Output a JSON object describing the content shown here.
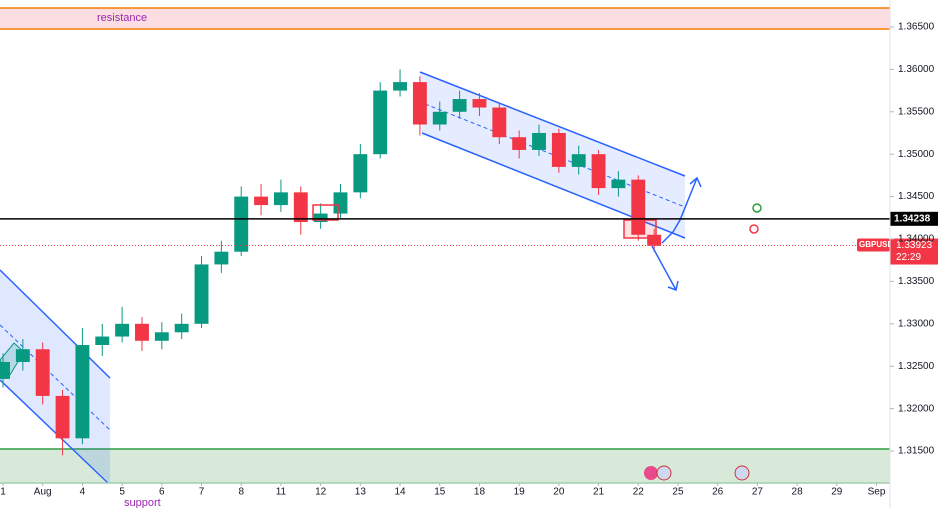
{
  "chart_data": {
    "type": "candlestick",
    "up_color": "#089981",
    "down_color": "#f23645",
    "x": [
      0,
      0.5,
      1,
      1.5,
      2,
      2.5,
      3,
      3.5,
      4,
      4.5,
      5,
      5.5,
      6,
      6.5,
      7,
      7.5,
      8,
      8.5,
      9,
      9.5,
      10,
      10.5,
      11,
      11.5,
      12,
      12.5,
      13,
      13.5,
      14,
      14.5,
      15,
      15.5,
      16,
      16.4
    ],
    "open": [
      1.3235,
      1.3255,
      1.327,
      1.3215,
      1.3165,
      1.3275,
      1.3285,
      1.33,
      1.328,
      1.329,
      1.33,
      1.337,
      1.3385,
      1.345,
      1.344,
      1.3455,
      1.342,
      1.343,
      1.3455,
      1.35,
      1.3575,
      1.3585,
      1.3535,
      1.355,
      1.3565,
      1.3555,
      1.352,
      1.3505,
      1.3525,
      1.3485,
      1.35,
      1.346,
      1.347,
      1.3405
    ],
    "high": [
      1.3265,
      1.3282,
      1.3278,
      1.3222,
      1.3295,
      1.33,
      1.332,
      1.3308,
      1.3302,
      1.3312,
      1.338,
      1.3398,
      1.3462,
      1.3465,
      1.347,
      1.3462,
      1.3442,
      1.3465,
      1.3512,
      1.3585,
      1.36,
      1.3592,
      1.3562,
      1.3575,
      1.3572,
      1.356,
      1.3528,
      1.3535,
      1.353,
      1.351,
      1.3505,
      1.348,
      1.3475,
      1.3412
    ],
    "low": [
      1.3225,
      1.3245,
      1.3205,
      1.3145,
      1.3158,
      1.3262,
      1.3278,
      1.3268,
      1.327,
      1.3282,
      1.3295,
      1.336,
      1.338,
      1.3428,
      1.3432,
      1.3405,
      1.3412,
      1.3425,
      1.3448,
      1.3495,
      1.3568,
      1.3522,
      1.3528,
      1.3542,
      1.3545,
      1.3512,
      1.3495,
      1.3498,
      1.3478,
      1.3476,
      1.3452,
      1.345,
      1.3398,
      1.3385
    ],
    "close": [
      1.3255,
      1.327,
      1.3215,
      1.3165,
      1.3275,
      1.3285,
      1.33,
      1.328,
      1.329,
      1.33,
      1.337,
      1.3385,
      1.345,
      1.344,
      1.3455,
      1.342,
      1.343,
      1.3455,
      1.35,
      1.3575,
      1.3585,
      1.3535,
      1.355,
      1.3565,
      1.3555,
      1.352,
      1.3505,
      1.3525,
      1.3485,
      1.35,
      1.346,
      1.347,
      1.3405,
      1.3392
    ],
    "xlim": [
      -0.0756,
      22.34
    ],
    "ylim": [
      1.31123,
      1.36818
    ],
    "xticks": [
      {
        "value": 0,
        "label": "1"
      },
      {
        "value": 1,
        "label": "Aug"
      },
      {
        "value": 2,
        "label": "4"
      },
      {
        "value": 3,
        "label": "5"
      },
      {
        "value": 4,
        "label": "6"
      },
      {
        "value": 5,
        "label": "7"
      },
      {
        "value": 6,
        "label": "8"
      },
      {
        "value": 7,
        "label": "11"
      },
      {
        "value": 8,
        "label": "12"
      },
      {
        "value": 9,
        "label": "13"
      },
      {
        "value": 10,
        "label": "14"
      },
      {
        "value": 11,
        "label": "15"
      },
      {
        "value": 12,
        "label": "18"
      },
      {
        "value": 13,
        "label": "19"
      },
      {
        "value": 14,
        "label": "20"
      },
      {
        "value": 15,
        "label": "21"
      },
      {
        "value": 16,
        "label": "22"
      },
      {
        "value": 17,
        "label": "25"
      },
      {
        "value": 18,
        "label": "26"
      },
      {
        "value": 19,
        "label": "27"
      },
      {
        "value": 20,
        "label": "28"
      },
      {
        "value": 21,
        "label": "29"
      },
      {
        "value": 22,
        "label": "Sep"
      }
    ],
    "yticks": [
      {
        "value": 1.365,
        "label": "1.36500"
      },
      {
        "value": 1.36,
        "label": "1.36000"
      },
      {
        "value": 1.355,
        "label": "1.35500"
      },
      {
        "value": 1.35,
        "label": "1.35000"
      },
      {
        "value": 1.345,
        "label": "1.34500"
      },
      {
        "value": 1.34,
        "label": "1.34000"
      },
      {
        "value": 1.335,
        "label": "1.33500"
      },
      {
        "value": 1.33,
        "label": "1.33000"
      },
      {
        "value": 1.325,
        "label": "1.32500"
      },
      {
        "value": 1.32,
        "label": "1.32000"
      },
      {
        "value": 1.315,
        "label": "1.31500"
      }
    ],
    "zones": [
      {
        "name": "resistance",
        "from": 1.36476,
        "to": 1.36724,
        "fill": "#fcdde1",
        "edge": "#f57c00"
      },
      {
        "name": "support",
        "from": 1.31123,
        "to": 1.31524,
        "fill": "#d7ead9",
        "edge": "#2e9e3e"
      }
    ],
    "level": {
      "value": 1.34238,
      "label": "1.34238"
    },
    "last_price": {
      "value": 1.33923,
      "label": "1.33923",
      "symbol": "GBPUSD",
      "time": "22:29"
    }
  }
}
